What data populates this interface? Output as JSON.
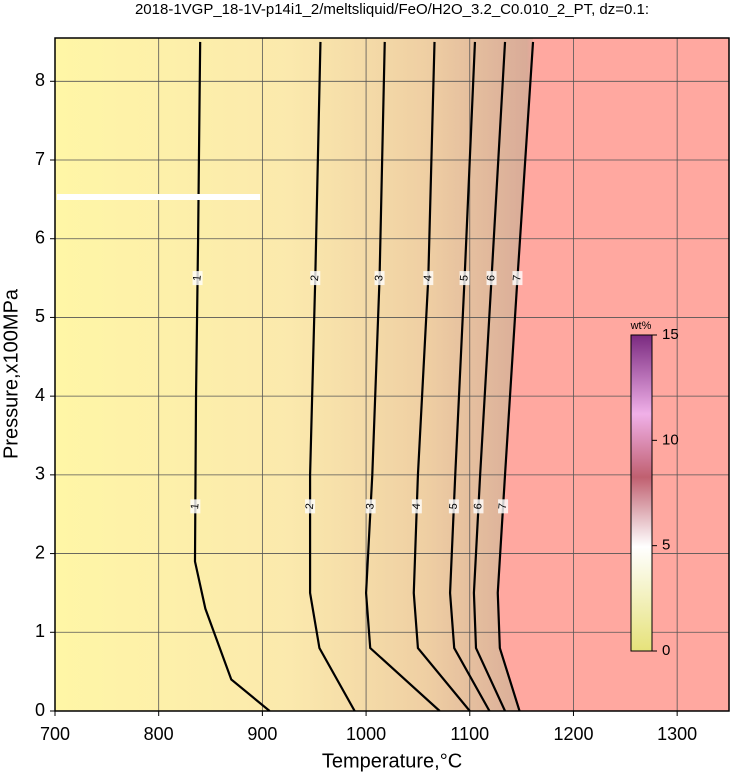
{
  "chart_data": {
    "type": "contour",
    "title": "2018-1VGP_18-1V-p14i1_2/meltsliquid/FeO/H2O_3.2_C0.010_2_PT, dz=0.1:",
    "x_label": "Temperature,°C",
    "y_label": "Pressure,x100MPa",
    "xlim": [
      700,
      1350
    ],
    "ylim": [
      0,
      8.55
    ],
    "xticks": [
      700,
      800,
      900,
      1000,
      1100,
      1200,
      1300
    ],
    "yticks": [
      0,
      1,
      2,
      3,
      4,
      5,
      6,
      7,
      8
    ],
    "grid": true,
    "contours": [
      {
        "level": 1,
        "x": [
          907,
          870,
          845,
          835,
          836,
          838,
          840
        ],
        "y": [
          0,
          0.4,
          1.3,
          1.9,
          4,
          6,
          8.5
        ]
      },
      {
        "level": 2,
        "x": [
          989,
          955,
          946,
          946,
          951,
          956
        ],
        "y": [
          0,
          0.8,
          1.5,
          3,
          5.5,
          8.5
        ]
      },
      {
        "level": 3,
        "x": [
          1071,
          1004,
          1000,
          1006,
          1013,
          1018
        ],
        "y": [
          0,
          0.8,
          1.5,
          3,
          5.5,
          8.5
        ]
      },
      {
        "level": 4,
        "x": [
          1100,
          1050,
          1046,
          1050,
          1060,
          1066
        ],
        "y": [
          0,
          0.8,
          1.5,
          3,
          5.5,
          8.5
        ]
      },
      {
        "level": 5,
        "x": [
          1119,
          1085,
          1081,
          1086,
          1095,
          1105
        ],
        "y": [
          0,
          0.8,
          1.5,
          3,
          5.5,
          8.5
        ]
      },
      {
        "level": 6,
        "x": [
          1134,
          1106,
          1104,
          1110,
          1121,
          1134
        ],
        "y": [
          0,
          0.8,
          1.5,
          3,
          5.5,
          8.5
        ]
      },
      {
        "level": 7,
        "x": [
          1148,
          1129,
          1127,
          1134,
          1146,
          1161
        ],
        "y": [
          0,
          0.8,
          1.5,
          3,
          5.5,
          8.5
        ]
      }
    ],
    "colorbar": {
      "label": "wt%",
      "lim": [
        0,
        15
      ],
      "ticks": [
        0,
        5,
        10,
        15
      ]
    }
  }
}
